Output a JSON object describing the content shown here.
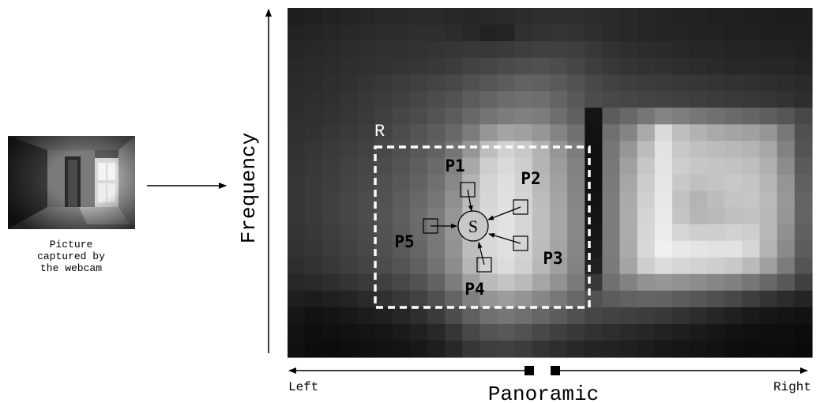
{
  "webcam_photo": {
    "caption_lines": [
      "Picture",
      "captured by",
      "the webcam"
    ]
  },
  "axes": {
    "y_label": "Frequency",
    "x_label": "Panoramic",
    "x_left": "Left",
    "x_right": "Right"
  },
  "region": {
    "label": "R"
  },
  "center_pixel": {
    "label": "S"
  },
  "neighbors": [
    {
      "label": "P1"
    },
    {
      "label": "P2"
    },
    {
      "label": "P3"
    },
    {
      "label": "P4"
    },
    {
      "label": "P5"
    }
  ],
  "heatmap": {
    "rows": 21,
    "cols": 30,
    "gray_levels": [
      [
        30,
        32,
        34,
        36,
        38,
        40,
        40,
        42,
        42,
        40,
        38,
        40,
        42,
        44,
        46,
        46,
        46,
        44,
        42,
        40,
        38,
        36,
        34,
        34,
        32,
        32,
        30,
        30,
        28,
        28
      ],
      [
        34,
        36,
        38,
        40,
        42,
        44,
        44,
        46,
        46,
        44,
        40,
        34,
        36,
        48,
        50,
        52,
        50,
        46,
        42,
        40,
        38,
        36,
        36,
        34,
        34,
        32,
        32,
        30,
        30,
        30
      ],
      [
        38,
        40,
        42,
        44,
        46,
        48,
        48,
        50,
        52,
        54,
        56,
        56,
        58,
        62,
        64,
        64,
        62,
        56,
        50,
        46,
        44,
        42,
        40,
        38,
        38,
        36,
        36,
        34,
        34,
        32
      ],
      [
        40,
        42,
        44,
        46,
        48,
        50,
        52,
        54,
        56,
        60,
        66,
        70,
        74,
        78,
        80,
        76,
        70,
        62,
        56,
        52,
        50,
        48,
        46,
        44,
        42,
        40,
        40,
        38,
        38,
        36
      ],
      [
        42,
        44,
        46,
        48,
        52,
        56,
        60,
        64,
        68,
        72,
        80,
        86,
        92,
        98,
        96,
        90,
        82,
        72,
        66,
        62,
        60,
        58,
        56,
        54,
        52,
        50,
        48,
        46,
        44,
        42
      ],
      [
        44,
        46,
        48,
        52,
        56,
        60,
        64,
        70,
        76,
        82,
        92,
        100,
        108,
        112,
        110,
        100,
        88,
        76,
        72,
        70,
        68,
        66,
        64,
        62,
        60,
        58,
        56,
        54,
        50,
        46
      ],
      [
        46,
        48,
        50,
        54,
        58,
        64,
        70,
        76,
        84,
        92,
        104,
        116,
        124,
        128,
        124,
        110,
        96,
        20,
        92,
        104,
        118,
        132,
        126,
        118,
        112,
        106,
        100,
        94,
        86,
        72
      ],
      [
        48,
        50,
        54,
        58,
        62,
        68,
        76,
        84,
        92,
        104,
        124,
        150,
        164,
        160,
        150,
        132,
        112,
        18,
        112,
        132,
        170,
        218,
        190,
        178,
        170,
        164,
        160,
        150,
        120,
        80
      ],
      [
        50,
        54,
        58,
        62,
        66,
        72,
        80,
        88,
        98,
        116,
        150,
        190,
        210,
        200,
        178,
        150,
        124,
        16,
        118,
        150,
        188,
        226,
        200,
        192,
        188,
        184,
        180,
        168,
        130,
        84
      ],
      [
        52,
        56,
        60,
        66,
        70,
        76,
        84,
        94,
        106,
        128,
        168,
        206,
        218,
        206,
        180,
        156,
        130,
        16,
        120,
        160,
        198,
        228,
        206,
        198,
        196,
        194,
        190,
        176,
        140,
        90
      ],
      [
        54,
        58,
        62,
        68,
        72,
        80,
        88,
        98,
        112,
        136,
        180,
        212,
        222,
        210,
        184,
        160,
        132,
        16,
        122,
        166,
        204,
        230,
        200,
        192,
        196,
        200,
        196,
        182,
        148,
        96
      ],
      [
        54,
        58,
        64,
        70,
        76,
        82,
        92,
        104,
        118,
        144,
        186,
        214,
        224,
        212,
        188,
        164,
        134,
        18,
        124,
        170,
        208,
        232,
        194,
        180,
        188,
        196,
        198,
        186,
        152,
        100
      ],
      [
        54,
        58,
        64,
        70,
        76,
        84,
        94,
        108,
        124,
        150,
        190,
        218,
        226,
        214,
        190,
        166,
        136,
        20,
        124,
        172,
        212,
        234,
        196,
        182,
        186,
        192,
        194,
        184,
        150,
        100
      ],
      [
        52,
        56,
        62,
        68,
        74,
        82,
        92,
        106,
        122,
        150,
        190,
        218,
        226,
        214,
        190,
        166,
        136,
        22,
        124,
        172,
        214,
        236,
        214,
        206,
        206,
        210,
        206,
        184,
        144,
        96
      ],
      [
        50,
        54,
        60,
        66,
        72,
        80,
        90,
        102,
        120,
        146,
        188,
        216,
        224,
        212,
        188,
        164,
        134,
        26,
        124,
        170,
        216,
        240,
        232,
        228,
        226,
        226,
        214,
        180,
        138,
        92
      ],
      [
        46,
        50,
        56,
        62,
        68,
        76,
        84,
        96,
        114,
        140,
        182,
        210,
        220,
        208,
        184,
        160,
        130,
        32,
        122,
        164,
        206,
        220,
        214,
        210,
        206,
        200,
        186,
        160,
        124,
        84
      ],
      [
        40,
        42,
        46,
        52,
        58,
        64,
        72,
        82,
        98,
        124,
        160,
        186,
        196,
        186,
        166,
        146,
        122,
        56,
        112,
        130,
        146,
        150,
        146,
        140,
        134,
        128,
        118,
        104,
        88,
        64
      ],
      [
        30,
        28,
        32,
        36,
        42,
        48,
        56,
        66,
        80,
        100,
        128,
        148,
        156,
        148,
        134,
        120,
        104,
        82,
        92,
        98,
        100,
        98,
        92,
        86,
        80,
        72,
        62,
        52,
        44,
        36
      ],
      [
        22,
        18,
        20,
        24,
        28,
        32,
        38,
        46,
        58,
        76,
        96,
        112,
        118,
        112,
        102,
        92,
        80,
        70,
        66,
        64,
        60,
        56,
        50,
        44,
        38,
        32,
        26,
        22,
        20,
        18
      ],
      [
        18,
        14,
        16,
        18,
        20,
        22,
        26,
        32,
        40,
        54,
        72,
        84,
        88,
        82,
        72,
        64,
        56,
        50,
        46,
        42,
        38,
        34,
        30,
        26,
        22,
        18,
        16,
        14,
        14,
        12
      ],
      [
        16,
        12,
        12,
        14,
        16,
        18,
        20,
        24,
        30,
        40,
        54,
        62,
        64,
        60,
        52,
        46,
        40,
        36,
        34,
        32,
        28,
        24,
        22,
        20,
        18,
        14,
        12,
        12,
        12,
        10
      ]
    ]
  }
}
